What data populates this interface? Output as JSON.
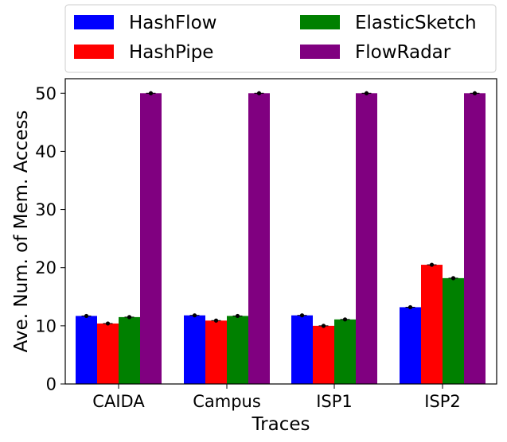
{
  "chart_data": {
    "type": "bar",
    "categories": [
      "CAIDA",
      "Campus",
      "ISP1",
      "ISP2"
    ],
    "series": [
      {
        "name": "HashFlow",
        "color": "#0000ff",
        "values": [
          11.7,
          11.8,
          11.8,
          13.2
        ]
      },
      {
        "name": "HashPipe",
        "color": "#ff0000",
        "values": [
          10.4,
          10.9,
          10.0,
          20.5
        ]
      },
      {
        "name": "ElasticSketch",
        "color": "#008000",
        "values": [
          11.5,
          11.7,
          11.1,
          18.2
        ]
      },
      {
        "name": "FlowRadar",
        "color": "#800080",
        "values": [
          50.0,
          50.0,
          50.0,
          50.0
        ]
      }
    ],
    "xlabel": "Traces",
    "ylabel": "Ave. Num. of Mem. Access",
    "ylim": [
      0,
      52.5
    ],
    "yticks": [
      0,
      10,
      20,
      30,
      40,
      50
    ],
    "legend": {
      "placement": "top",
      "columns": 2
    },
    "grid": false,
    "error_markers": true
  }
}
